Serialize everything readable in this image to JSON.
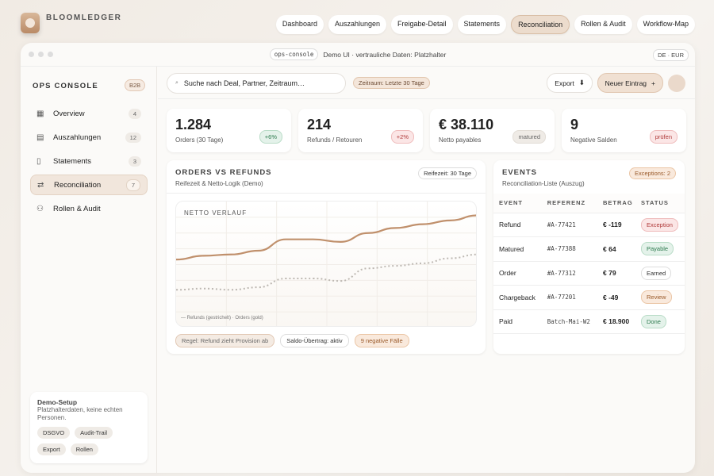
{
  "brand": "BLOOMLEDGER",
  "topnav": [
    "Dashboard",
    "Auszahlungen",
    "Freigabe-Detail",
    "Statements",
    "Reconciliation",
    "Rollen & Audit",
    "Workflow-Map"
  ],
  "topnav_active": "Reconciliation",
  "titlebar": {
    "tag": "ops-console",
    "text": "Demo UI · vertrauliche Daten: Platzhalter",
    "locale": "DE · EUR"
  },
  "sidebar": {
    "title": "OPS CONSOLE",
    "badge": "B2B",
    "items": [
      {
        "label": "Overview",
        "count": "4",
        "icon": "grid-icon"
      },
      {
        "label": "Auszahlungen",
        "count": "12",
        "icon": "message-icon"
      },
      {
        "label": "Statements",
        "count": "3",
        "icon": "document-icon"
      },
      {
        "label": "Reconciliation",
        "count": "7",
        "icon": "swap-icon"
      },
      {
        "label": "Rollen & Audit",
        "count": "",
        "icon": "users-icon"
      }
    ],
    "demo": {
      "title": "Demo-Setup",
      "text": "Platzhalterdaten, keine echten Personen.",
      "chips": [
        "DSGVO",
        "Audit-Trail",
        "Export",
        "Rollen"
      ]
    }
  },
  "toolbar": {
    "search_placeholder": "Suche nach Deal, Partner, Zeitraum…",
    "range": "Zeitraum: Letzte 30 Tage",
    "export": "Export",
    "new": "Neuer Eintrag"
  },
  "kpis": [
    {
      "value": "1.284",
      "label": "Orders (30 Tage)",
      "badge": "+6%",
      "tone": "g"
    },
    {
      "value": "214",
      "label": "Refunds / Retouren",
      "badge": "+2%",
      "tone": "r"
    },
    {
      "value": "€ 38.110",
      "label": "Netto payables",
      "badge": "matured",
      "tone": "n"
    },
    {
      "value": "9",
      "label": "Negative Salden",
      "badge": "prüfen",
      "tone": "r"
    }
  ],
  "chart_card": {
    "title": "ORDERS VS REFUNDS",
    "subtitle": "Reifezeit & Netto-Logik (Demo)",
    "badge": "Reifezeit: 30 Tage",
    "plot_label": "NETTO VERLAUF",
    "legend": "— Refunds (gestrichelt) · Orders (gold)",
    "footer": [
      "Regel: Refund zieht Provision ab",
      "Saldo-Übertrag: aktiv",
      "9 negative Fälle"
    ]
  },
  "chart_data": {
    "type": "line",
    "grid": true,
    "ylim": [
      0,
      100
    ],
    "series": [
      {
        "name": "Orders (gold)",
        "color": "#c0906c",
        "style": "solid",
        "values": [
          54,
          57,
          58,
          61,
          70,
          70,
          68,
          75,
          79,
          82,
          85,
          89
        ]
      },
      {
        "name": "Refunds (gestrichelt)",
        "color": "#bdb8b2",
        "style": "dashed",
        "values": [
          30,
          31,
          30,
          32,
          39,
          39,
          37,
          47,
          49,
          51,
          55,
          58
        ]
      }
    ]
  },
  "events": {
    "title": "EVENTS",
    "subtitle": "Reconciliation-Liste (Auszug)",
    "badge": "Exceptions: 2",
    "columns": [
      "EVENT",
      "REFERENZ",
      "BETRAG",
      "STATUS"
    ],
    "rows": [
      {
        "event": "Refund",
        "ref": "#A-77421",
        "amount": "€ -119",
        "status": "Exception",
        "tone": "r"
      },
      {
        "event": "Matured",
        "ref": "#A-77388",
        "amount": "€ 64",
        "status": "Payable",
        "tone": "g"
      },
      {
        "event": "Order",
        "ref": "#A-77312",
        "amount": "€ 79",
        "status": "Earned",
        "tone": "w"
      },
      {
        "event": "Chargeback",
        "ref": "#A-77201",
        "amount": "€ -49",
        "status": "Review",
        "tone": "o"
      },
      {
        "event": "Paid",
        "ref": "Batch-Mai-W2",
        "amount": "€ 18.900",
        "status": "Done",
        "tone": "g"
      }
    ]
  }
}
